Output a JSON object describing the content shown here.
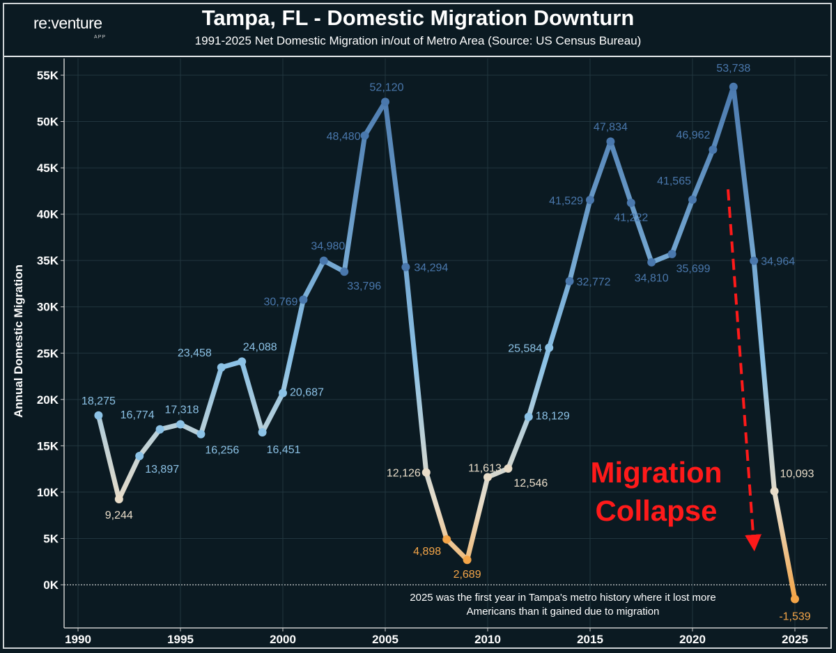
{
  "header": {
    "logo": "re:venture",
    "logo_sub": "APP",
    "title": "Tampa, FL - Domestic Migration Downturn",
    "subtitle": "1991-2025 Net Domestic Migration in/out of Metro Area (Source: US Census Bureau)"
  },
  "chart_data": {
    "type": "line",
    "title": "Tampa, FL - Domestic Migration Downturn",
    "subtitle": "1991-2025 Net Domestic Migration in/out of Metro Area (Source: US Census Bureau)",
    "ylabel": "Annual Domestic Migration",
    "xlabel": "",
    "xlim": [
      1989,
      2026
    ],
    "ylim": [
      -4000,
      57000
    ],
    "x_ticks": [
      1990,
      1995,
      2000,
      2005,
      2010,
      2015,
      2020,
      2025
    ],
    "y_ticks": [
      0,
      5000,
      10000,
      15000,
      20000,
      25000,
      30000,
      35000,
      40000,
      45000,
      50000,
      55000
    ],
    "y_tick_labels": [
      "0K",
      "5K",
      "10K",
      "15K",
      "20K",
      "25K",
      "30K",
      "35K",
      "40K",
      "45K",
      "50K",
      "55K"
    ],
    "grid": true,
    "x": [
      1991,
      1992,
      1993,
      1994,
      1995,
      1996,
      1997,
      1998,
      1999,
      2000,
      2001,
      2002,
      2003,
      2004,
      2005,
      2006,
      2007,
      2008,
      2009,
      2010,
      2011,
      2012,
      2013,
      2014,
      2015,
      2016,
      2017,
      2018,
      2019,
      2020,
      2021,
      2022,
      2023,
      2024,
      2025
    ],
    "values": [
      18275,
      9244,
      13897,
      16774,
      17318,
      16256,
      23458,
      24088,
      16451,
      20687,
      30769,
      34980,
      33796,
      48480,
      52120,
      34294,
      12126,
      4898,
      2689,
      11613,
      12546,
      18129,
      25584,
      32772,
      41529,
      47834,
      41222,
      34810,
      35699,
      41565,
      46962,
      53738,
      34964,
      10093,
      -1539
    ],
    "data_labels": [
      "18,275",
      "9,244",
      "13,897",
      "16,774",
      "17,318",
      "16,256",
      "23,458",
      "24,088",
      "16,451",
      "20,687",
      "30,769",
      "34,980",
      "33,796",
      "48,480",
      "52,120",
      "34,294",
      "12,126",
      "4,898",
      "2,689",
      "11,613",
      "12,546",
      "18,129",
      "25,584",
      "32,772",
      "41,529",
      "47,834",
      "41,222",
      "34,810",
      "35,699",
      "41,565",
      "46,962",
      "53,738",
      "34,964",
      "10,093",
      "-1,539"
    ],
    "color_scale": {
      "high": "#4a78ad",
      "mid": "#8cc2e6",
      "low_mid": "#e9ddc9",
      "low": "#f4a548"
    },
    "reference_line": {
      "y": 0,
      "style": "dotted",
      "color": "#ffffff"
    },
    "annotations": {
      "callout_line1": "Migration",
      "callout_line2": "Collapse",
      "callout_color": "#ff1a1a",
      "arrow": "red-dashed-down-arrow",
      "note_line1": "2025 was the first year in Tampa's metro history where it lost more",
      "note_line2": "Americans than it gained due to migration"
    }
  }
}
